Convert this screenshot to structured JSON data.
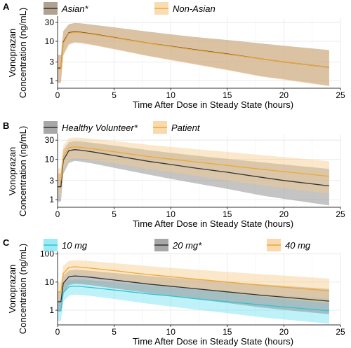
{
  "chart_data": [
    {
      "panel_label": "A",
      "type": "line",
      "xlabel": "Time After Dose in Steady State (hours)",
      "ylabel": "Vonoprazan\nConcentration (ng/mL)",
      "yscale": "log",
      "xlim": [
        0,
        25
      ],
      "ylim": [
        0.65,
        40
      ],
      "x_ticks": [
        0,
        5,
        10,
        15,
        20,
        25
      ],
      "y_ticks": [
        1,
        3,
        10,
        30
      ],
      "grid": true,
      "legend_position": "top",
      "series": [
        {
          "name": "Asian*",
          "color": "#333333",
          "band_color": "#9c8b73",
          "band_opacity": 0.55,
          "x": [
            0,
            0.3,
            0.5,
            1,
            1.5,
            2,
            3,
            5,
            8,
            10,
            12,
            15,
            18,
            20,
            24
          ],
          "median": [
            2.1,
            2.1,
            9.5,
            16.5,
            17.5,
            17,
            15.5,
            12.5,
            9,
            7.5,
            6.2,
            4.8,
            3.6,
            3.0,
            2.2
          ],
          "lower": [
            0.9,
            0.9,
            4.5,
            8.5,
            9.5,
            9.2,
            8.3,
            6.4,
            4.3,
            3.4,
            2.7,
            1.9,
            1.3,
            1.1,
            0.75
          ],
          "upper": [
            4.5,
            4.5,
            18,
            27,
            29,
            28.5,
            26.5,
            22.5,
            17.5,
            15,
            13,
            10.8,
            8.8,
            7.7,
            6.0
          ]
        },
        {
          "name": "Non-Asian",
          "color": "#f0a830",
          "band_color": "#f7c98a",
          "band_opacity": 0.4,
          "x": [
            0,
            0.3,
            0.5,
            1,
            1.5,
            2,
            3,
            5,
            8,
            10,
            12,
            15,
            18,
            20,
            24
          ],
          "median": [
            2.0,
            2.0,
            9.0,
            16,
            17,
            16.6,
            15.2,
            12.3,
            8.9,
            7.4,
            6.1,
            4.7,
            3.6,
            3.0,
            2.2
          ],
          "lower": [
            0.85,
            0.85,
            4.2,
            8.0,
            9.0,
            8.8,
            8.0,
            6.2,
            4.2,
            3.3,
            2.6,
            1.85,
            1.28,
            1.05,
            0.73
          ],
          "upper": [
            4.3,
            4.3,
            17,
            26,
            28,
            27.5,
            25.8,
            22,
            17.2,
            14.8,
            12.8,
            10.6,
            8.6,
            7.6,
            5.9
          ]
        }
      ]
    },
    {
      "panel_label": "B",
      "type": "line",
      "xlabel": "Time After Dose in Steady State (hours)",
      "ylabel": "Vonoprazan\nConcentration (ng/mL)",
      "yscale": "log",
      "xlim": [
        0,
        25
      ],
      "ylim": [
        0.65,
        40
      ],
      "x_ticks": [
        0,
        5,
        10,
        15,
        20,
        25
      ],
      "y_ticks": [
        1,
        3,
        10,
        30
      ],
      "grid": true,
      "legend_position": "top",
      "series": [
        {
          "name": "Healthy Volunteer*",
          "color": "#333333",
          "band_color": "#8a8a8a",
          "band_opacity": 0.5,
          "x": [
            0,
            0.3,
            0.5,
            1,
            1.5,
            2,
            3,
            5,
            8,
            10,
            12,
            15,
            18,
            20,
            24
          ],
          "median": [
            2.1,
            2.1,
            9.5,
            16.5,
            17.5,
            17,
            15.5,
            12.5,
            9,
            7.5,
            6.2,
            4.8,
            3.6,
            3.0,
            2.2
          ],
          "lower": [
            0.9,
            0.9,
            4.3,
            8.2,
            9.2,
            8.9,
            8.0,
            6.2,
            4.2,
            3.3,
            2.6,
            1.85,
            1.28,
            1.05,
            0.72
          ],
          "upper": [
            4.5,
            4.5,
            17.5,
            26.5,
            28.5,
            28,
            26,
            22,
            17,
            14.6,
            12.6,
            10.4,
            8.5,
            7.5,
            5.8
          ]
        },
        {
          "name": "Patient",
          "color": "#f0a830",
          "band_color": "#f7c98a",
          "band_opacity": 0.45,
          "x": [
            0,
            0.3,
            0.5,
            1,
            1.5,
            2,
            3,
            5,
            8,
            10,
            12,
            15,
            18,
            20,
            24
          ],
          "median": [
            3.0,
            3.0,
            12,
            19.5,
            20.5,
            20,
            18.5,
            15.5,
            11.8,
            10.2,
            8.8,
            7.1,
            5.7,
            5.0,
            3.8
          ],
          "lower": [
            1.3,
            1.3,
            5.5,
            9.8,
            10.8,
            10.6,
            9.8,
            8.0,
            5.8,
            4.8,
            4.0,
            3.0,
            2.3,
            1.95,
            1.4
          ],
          "upper": [
            6.0,
            6.0,
            22,
            33,
            35,
            34.5,
            32.5,
            28.5,
            23,
            20.5,
            18.2,
            15.3,
            12.8,
            11.4,
            9.0
          ]
        }
      ]
    },
    {
      "panel_label": "C",
      "type": "line",
      "xlabel": "Time After Dose in Steady State (hours)",
      "ylabel": "Vonoprazan\nConcentration (ng/mL)",
      "yscale": "log",
      "xlim": [
        0,
        25
      ],
      "ylim": [
        0.3,
        110
      ],
      "x_ticks": [
        0,
        5,
        10,
        15,
        20,
        25
      ],
      "y_ticks": [
        1,
        10,
        100
      ],
      "grid": true,
      "legend_position": "top",
      "series": [
        {
          "name": "10 mg",
          "color": "#2ec4d6",
          "band_color": "#6fe3ef",
          "band_opacity": 0.45,
          "x": [
            0,
            0.3,
            0.5,
            1,
            1.5,
            2,
            3,
            5,
            8,
            10,
            12,
            15,
            18,
            20,
            24
          ],
          "median": [
            0.95,
            0.95,
            4.2,
            6.8,
            7.2,
            7.0,
            6.4,
            5.2,
            3.8,
            3.2,
            2.6,
            2.0,
            1.55,
            1.3,
            0.95
          ],
          "lower": [
            0.42,
            0.42,
            2.0,
            3.3,
            3.6,
            3.5,
            3.2,
            2.5,
            1.7,
            1.35,
            1.08,
            0.78,
            0.56,
            0.47,
            0.33
          ],
          "upper": [
            2.0,
            2.0,
            8.0,
            12,
            12.8,
            12.5,
            11.6,
            9.8,
            7.6,
            6.5,
            5.6,
            4.6,
            3.7,
            3.3,
            2.55
          ]
        },
        {
          "name": "20 mg*",
          "color": "#333333",
          "band_color": "#8a8a8a",
          "band_opacity": 0.5,
          "x": [
            0,
            0.3,
            0.5,
            1,
            1.5,
            2,
            3,
            5,
            8,
            10,
            12,
            15,
            18,
            20,
            24
          ],
          "median": [
            2.0,
            2.0,
            9.0,
            15.5,
            16.5,
            16,
            14.6,
            11.8,
            8.5,
            7.1,
            5.9,
            4.5,
            3.4,
            2.9,
            2.1
          ],
          "lower": [
            0.9,
            0.9,
            4.3,
            7.8,
            8.7,
            8.5,
            7.7,
            6.0,
            4.1,
            3.2,
            2.55,
            1.8,
            1.25,
            1.03,
            0.72
          ],
          "upper": [
            4.3,
            4.3,
            17,
            25.5,
            27.5,
            27,
            25,
            21,
            16.5,
            14.2,
            12.3,
            10.1,
            8.3,
            7.3,
            5.7
          ]
        },
        {
          "name": "40 mg",
          "color": "#f0a830",
          "band_color": "#f7c98a",
          "band_opacity": 0.45,
          "x": [
            0,
            0.3,
            0.5,
            1,
            1.5,
            2,
            3,
            5,
            8,
            10,
            12,
            15,
            18,
            20,
            24
          ],
          "median": [
            4.5,
            4.5,
            20,
            33,
            35,
            34,
            31,
            25.5,
            18.5,
            15.5,
            13,
            10,
            7.7,
            6.6,
            4.9
          ],
          "lower": [
            2.0,
            2.0,
            9.5,
            17,
            18.8,
            18.2,
            16.5,
            13,
            9.0,
            7.2,
            5.8,
            4.2,
            3.0,
            2.5,
            1.75
          ],
          "upper": [
            9.5,
            9.5,
            38,
            56,
            60,
            59,
            55,
            47,
            37,
            32,
            28,
            23,
            19,
            17,
            13.3
          ]
        }
      ]
    }
  ]
}
